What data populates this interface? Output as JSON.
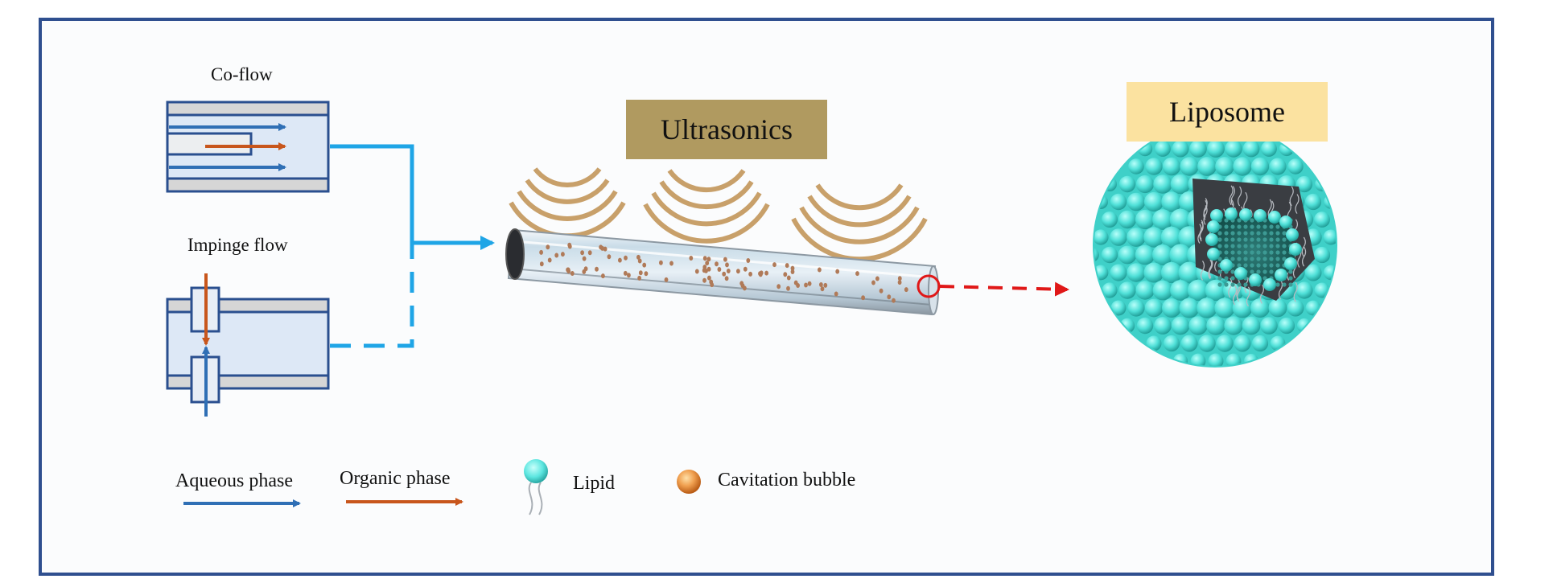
{
  "labels": {
    "coflow": "Co-flow",
    "impinge": "Impinge flow",
    "ultrasonics": "Ultrasonics",
    "liposome": "Liposome"
  },
  "legend": {
    "aqueous": "Aqueous phase",
    "organic": "Organic phase",
    "lipid": "Lipid",
    "bubble": "Cavitation bubble"
  },
  "colors": {
    "frame": "#2f4f8f",
    "channel_fill": "#dde8f6",
    "channel_stroke": "#2a4f8f",
    "aqueous_arrow": "#2f6fb5",
    "organic_arrow": "#c8561c",
    "flow_line": "#1fa5e6",
    "ultrasonics_bg": "#b09a60",
    "liposome_bg": "#fbe2a0",
    "wave": "#c8a06a",
    "lipid_head": "#5ce6e0",
    "bubble": "#e88a3a",
    "pointer": "#e01818"
  }
}
